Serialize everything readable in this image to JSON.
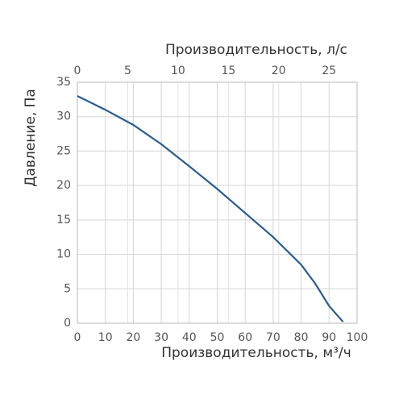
{
  "chart_data": {
    "type": "line",
    "xlabel": "Производительность, м³/ч",
    "x2label": "Производительность, л/с",
    "ylabel": "Давление, Па",
    "x": [
      0,
      10,
      20,
      30,
      40,
      50,
      60,
      70,
      80,
      85,
      90,
      95
    ],
    "values": [
      33,
      31,
      28.8,
      26,
      22.8,
      19.5,
      16,
      12.5,
      8.5,
      5.8,
      2.5,
      0.2
    ],
    "color": "#2a5d8f",
    "xlim": [
      0,
      100
    ],
    "xticks": [
      0,
      10,
      20,
      30,
      40,
      50,
      60,
      70,
      80,
      90,
      100
    ],
    "x2lim": [
      0,
      27.78
    ],
    "x2ticks": [
      0,
      5,
      10,
      15,
      20,
      25
    ],
    "ylim": [
      0,
      35
    ],
    "yticks": [
      0,
      5,
      10,
      15,
      20,
      25,
      30,
      35
    ],
    "grid": true
  }
}
